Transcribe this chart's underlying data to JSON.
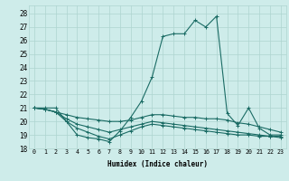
{
  "xlabel": "Humidex (Indice chaleur)",
  "background_color": "#ceecea",
  "grid_color": "#aed4d0",
  "line_color": "#1a6b64",
  "xlim": [
    -0.5,
    23.5
  ],
  "ylim": [
    18,
    28.6
  ],
  "yticks": [
    18,
    19,
    20,
    21,
    22,
    23,
    24,
    25,
    26,
    27,
    28
  ],
  "xticks": [
    0,
    1,
    2,
    3,
    4,
    5,
    6,
    7,
    8,
    9,
    10,
    11,
    12,
    13,
    14,
    15,
    16,
    17,
    18,
    19,
    20,
    21,
    22,
    23
  ],
  "series": [
    [
      21.0,
      21.0,
      21.0,
      20.0,
      19.0,
      18.8,
      18.7,
      18.5,
      19.3,
      20.3,
      21.5,
      23.3,
      26.3,
      26.5,
      26.5,
      27.5,
      27.0,
      27.8,
      20.6,
      19.7,
      21.0,
      19.5,
      19.0,
      19.0
    ],
    [
      21.0,
      20.9,
      20.7,
      20.5,
      20.3,
      20.2,
      20.1,
      20.0,
      20.0,
      20.1,
      20.3,
      20.5,
      20.5,
      20.4,
      20.3,
      20.3,
      20.2,
      20.2,
      20.1,
      19.9,
      19.8,
      19.6,
      19.4,
      19.2
    ],
    [
      21.0,
      20.9,
      20.7,
      20.2,
      19.8,
      19.6,
      19.4,
      19.2,
      19.4,
      19.6,
      19.8,
      20.0,
      19.9,
      19.8,
      19.7,
      19.6,
      19.5,
      19.4,
      19.3,
      19.2,
      19.1,
      19.0,
      18.9,
      18.9
    ],
    [
      21.0,
      20.9,
      20.7,
      20.0,
      19.5,
      19.2,
      18.9,
      18.7,
      19.0,
      19.3,
      19.6,
      19.8,
      19.7,
      19.6,
      19.5,
      19.4,
      19.3,
      19.2,
      19.1,
      19.0,
      19.0,
      18.9,
      18.9,
      18.8
    ]
  ]
}
